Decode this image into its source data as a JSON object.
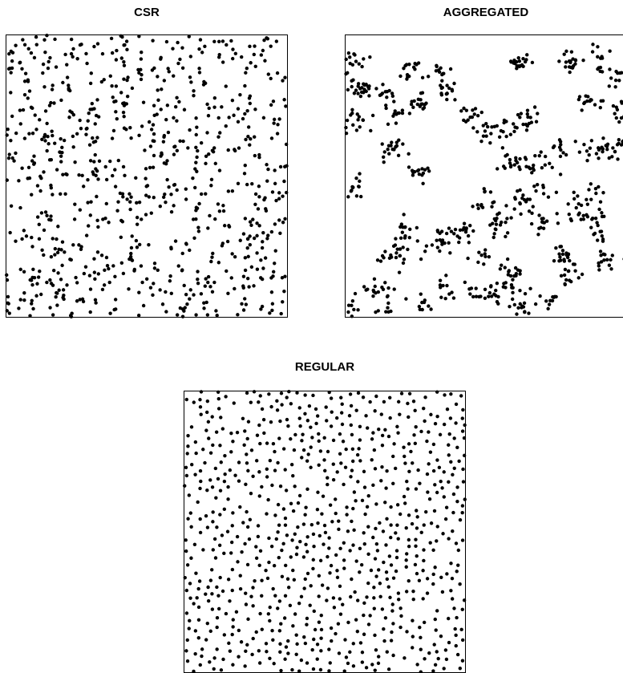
{
  "chart_data": [
    {
      "type": "scatter",
      "title": "CSR",
      "xlim": [
        0,
        1
      ],
      "ylim": [
        0,
        1
      ],
      "axes_shown": false,
      "point_color": "#000000",
      "pattern": "complete spatial randomness",
      "n_points_approx": 800,
      "seed": 11
    },
    {
      "type": "scatter",
      "title": "AGGREGATED",
      "xlim": [
        0,
        1
      ],
      "ylim": [
        0,
        1
      ],
      "axes_shown": false,
      "point_color": "#000000",
      "pattern": "clustered",
      "cluster_centers": [
        [
          0.03,
          0.91
        ],
        [
          0.06,
          0.82
        ],
        [
          0.04,
          0.7
        ],
        [
          0.13,
          0.79
        ],
        [
          0.18,
          0.73
        ],
        [
          0.23,
          0.87
        ],
        [
          0.33,
          0.87
        ],
        [
          0.37,
          0.8
        ],
        [
          0.26,
          0.75
        ],
        [
          0.45,
          0.71
        ],
        [
          0.52,
          0.64
        ],
        [
          0.58,
          0.66
        ],
        [
          0.65,
          0.7
        ],
        [
          0.6,
          0.55
        ],
        [
          0.71,
          0.46
        ],
        [
          0.68,
          0.54
        ],
        [
          0.77,
          0.59
        ],
        [
          0.87,
          0.59
        ],
        [
          0.93,
          0.59
        ],
        [
          0.98,
          0.6
        ],
        [
          0.87,
          0.77
        ],
        [
          0.91,
          0.92
        ],
        [
          0.96,
          0.86
        ],
        [
          0.98,
          0.73
        ],
        [
          0.88,
          0.44
        ],
        [
          0.82,
          0.38
        ],
        [
          0.88,
          0.35
        ],
        [
          0.9,
          0.28
        ],
        [
          0.77,
          0.22
        ],
        [
          0.93,
          0.19
        ],
        [
          0.8,
          0.14
        ],
        [
          0.62,
          0.42
        ],
        [
          0.7,
          0.33
        ],
        [
          0.55,
          0.33
        ],
        [
          0.48,
          0.4
        ],
        [
          0.41,
          0.3
        ],
        [
          0.33,
          0.26
        ],
        [
          0.21,
          0.31
        ],
        [
          0.19,
          0.22
        ],
        [
          0.13,
          0.21
        ],
        [
          0.1,
          0.1
        ],
        [
          0.14,
          0.05
        ],
        [
          0.27,
          0.05
        ],
        [
          0.35,
          0.1
        ],
        [
          0.46,
          0.09
        ],
        [
          0.54,
          0.08
        ],
        [
          0.62,
          0.04
        ],
        [
          0.72,
          0.05
        ],
        [
          0.03,
          0.46
        ],
        [
          0.01,
          0.03
        ],
        [
          0.62,
          0.9
        ],
        [
          0.8,
          0.9
        ],
        [
          0.16,
          0.6
        ],
        [
          0.27,
          0.51
        ],
        [
          0.5,
          0.21
        ],
        [
          0.6,
          0.15
        ]
      ],
      "n_points_approx": 800,
      "seed": 23
    },
    {
      "type": "scatter",
      "title": "REGULAR",
      "xlim": [
        0,
        1
      ],
      "ylim": [
        0,
        1
      ],
      "axes_shown": false,
      "point_color": "#000000",
      "pattern": "regular (inhibited)",
      "n_points_approx": 800,
      "seed": 37
    }
  ]
}
